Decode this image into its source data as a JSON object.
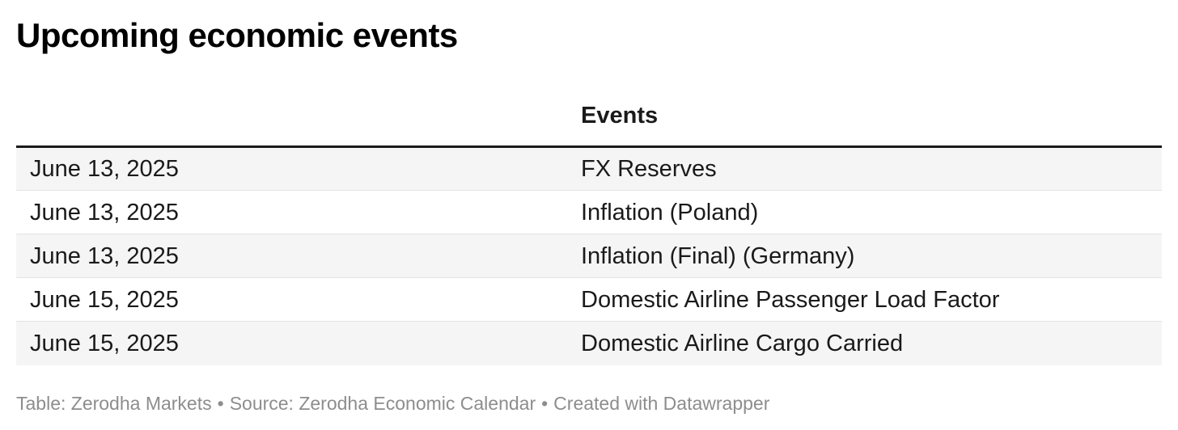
{
  "chart_data": {
    "type": "table",
    "title": "Upcoming economic events",
    "columns": [
      "",
      "Events"
    ],
    "rows": [
      [
        "June 13, 2025",
        "FX Reserves"
      ],
      [
        "June 13, 2025",
        "Inflation (Poland)"
      ],
      [
        "June 13, 2025",
        "Inflation (Final) (Germany)"
      ],
      [
        "June 15, 2025",
        "Domestic Airline Passenger Load Factor"
      ],
      [
        "June 15, 2025",
        "Domestic Airline Cargo Carried"
      ]
    ],
    "layout_hints": {
      "striped_rows": true,
      "stripe_on": "even-rows",
      "header_rule": "thick-black",
      "date_column_align": "left",
      "events_column_align": "left"
    }
  },
  "footer": {
    "parts": [
      "Table: Zerodha Markets",
      "Source: Zerodha Economic Calendar",
      "Created with Datawrapper"
    ],
    "separator": "•"
  },
  "colors": {
    "title_text": "#000000",
    "body_text": "#1a1a1a",
    "header_rule": "#1a1a1a",
    "stripe": "#f5f5f5",
    "divider": "#e4e4e4",
    "footer_text": "#8d8d8d",
    "background": "#ffffff"
  }
}
